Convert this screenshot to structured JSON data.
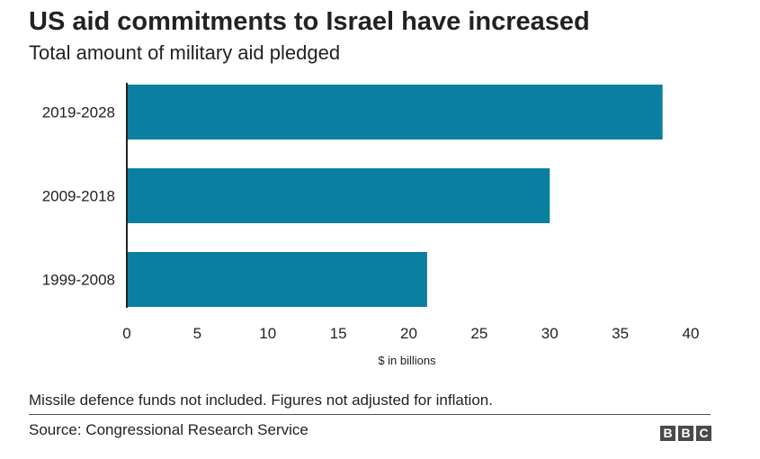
{
  "chart_data": {
    "type": "bar",
    "orientation": "horizontal",
    "title": "US aid commitments to Israel have increased",
    "subtitle": "Total amount of military aid pledged",
    "categories": [
      "2019-2028",
      "2009-2018",
      "1999-2008"
    ],
    "values": [
      38,
      30,
      21.3
    ],
    "xlabel": "$ in billions",
    "ylabel": "",
    "xlim": [
      0,
      40
    ],
    "xticks": [
      0,
      5,
      10,
      15,
      20,
      25,
      30,
      35,
      40
    ],
    "bar_color": "#0a7fa0",
    "grid": false,
    "legend": "none"
  },
  "footer": {
    "note": "Missile defence funds not included. Figures not adjusted for inflation.",
    "source": "Source: Congressional Research Service",
    "logo_letters": [
      "B",
      "B",
      "C"
    ]
  }
}
